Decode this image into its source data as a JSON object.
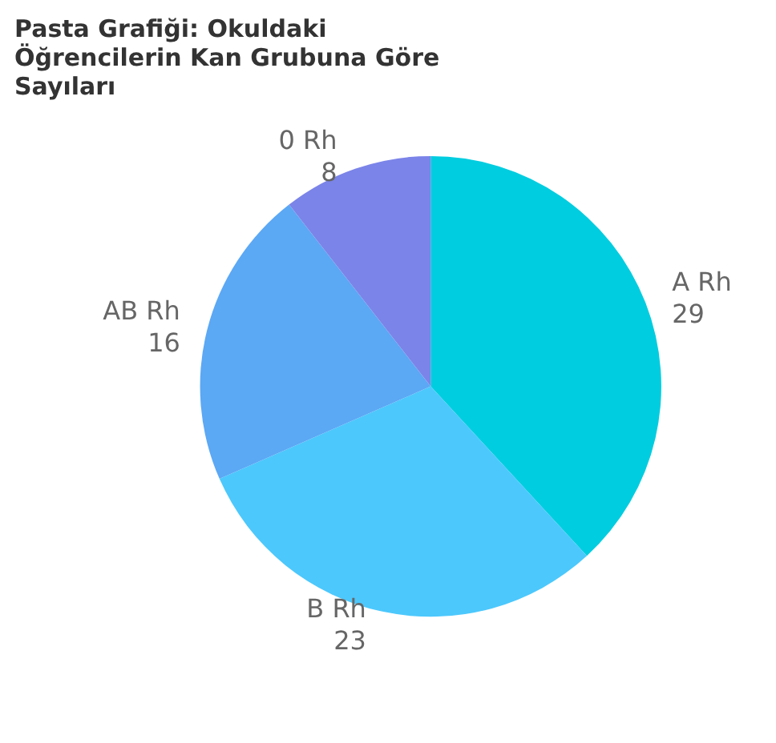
{
  "chart_data": {
    "type": "pie",
    "title": "Pasta Grafiği: Okuldaki Öğrencilerin Kan Grubuna Göre Sayıları",
    "categories": [
      "A Rh",
      "B Rh",
      "AB Rh",
      "0 Rh"
    ],
    "values": [
      29,
      23,
      16,
      8
    ],
    "colors": [
      "#00cde0",
      "#4cc8fc",
      "#5ba8f5",
      "#7b84e8"
    ],
    "data_labels": true,
    "legend": false
  }
}
